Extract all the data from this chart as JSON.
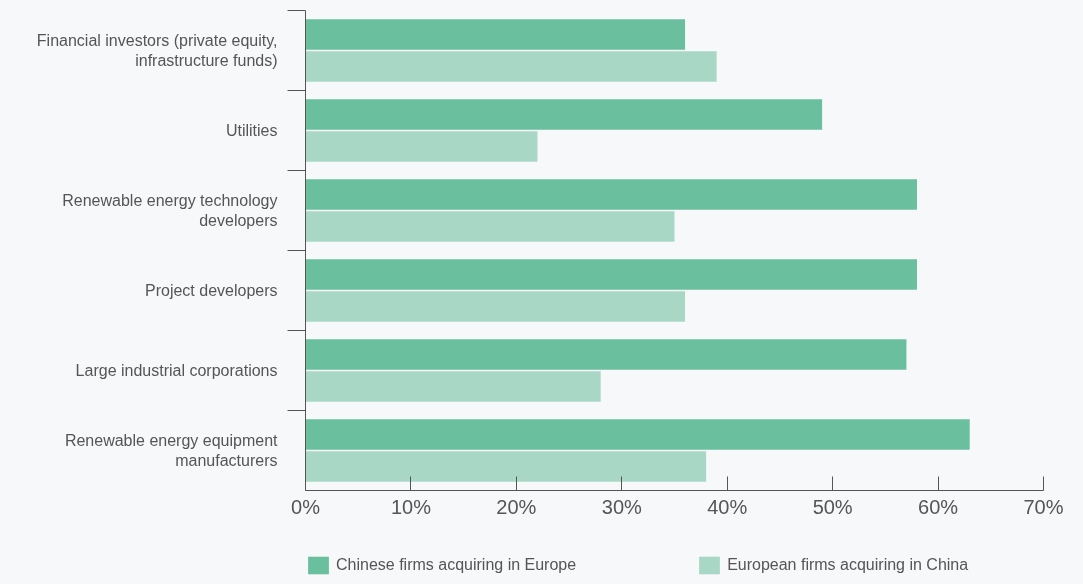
{
  "chart_data": {
    "type": "bar",
    "orientation": "horizontal",
    "categories": [
      "Financial investors (private equity,\ninfrastructure funds)",
      "Utilities",
      "Renewable energy technology\ndevelopers",
      "Project developers",
      "Large industrial corporations",
      "Renewable energy equipment\nmanufacturers"
    ],
    "series": [
      {
        "name": "Chinese firms acquiring in Europe",
        "color": "#6abf9e",
        "values": [
          36,
          49,
          58,
          58,
          57,
          63
        ]
      },
      {
        "name": "European firms acquiring in China",
        "color": "#a8d8c5",
        "values": [
          39,
          22,
          35,
          36,
          28,
          38
        ]
      }
    ],
    "xlim": [
      0,
      70
    ],
    "xticks": [
      {
        "value": 0,
        "label": "0%"
      },
      {
        "value": 10,
        "label": "10%"
      },
      {
        "value": 20,
        "label": "20%"
      },
      {
        "value": 30,
        "label": "30%"
      },
      {
        "value": 40,
        "label": "40%"
      },
      {
        "value": 50,
        "label": "50%"
      },
      {
        "value": 60,
        "label": "60%"
      },
      {
        "value": 70,
        "label": "70%"
      }
    ],
    "grid": false,
    "legend": "bottom"
  }
}
